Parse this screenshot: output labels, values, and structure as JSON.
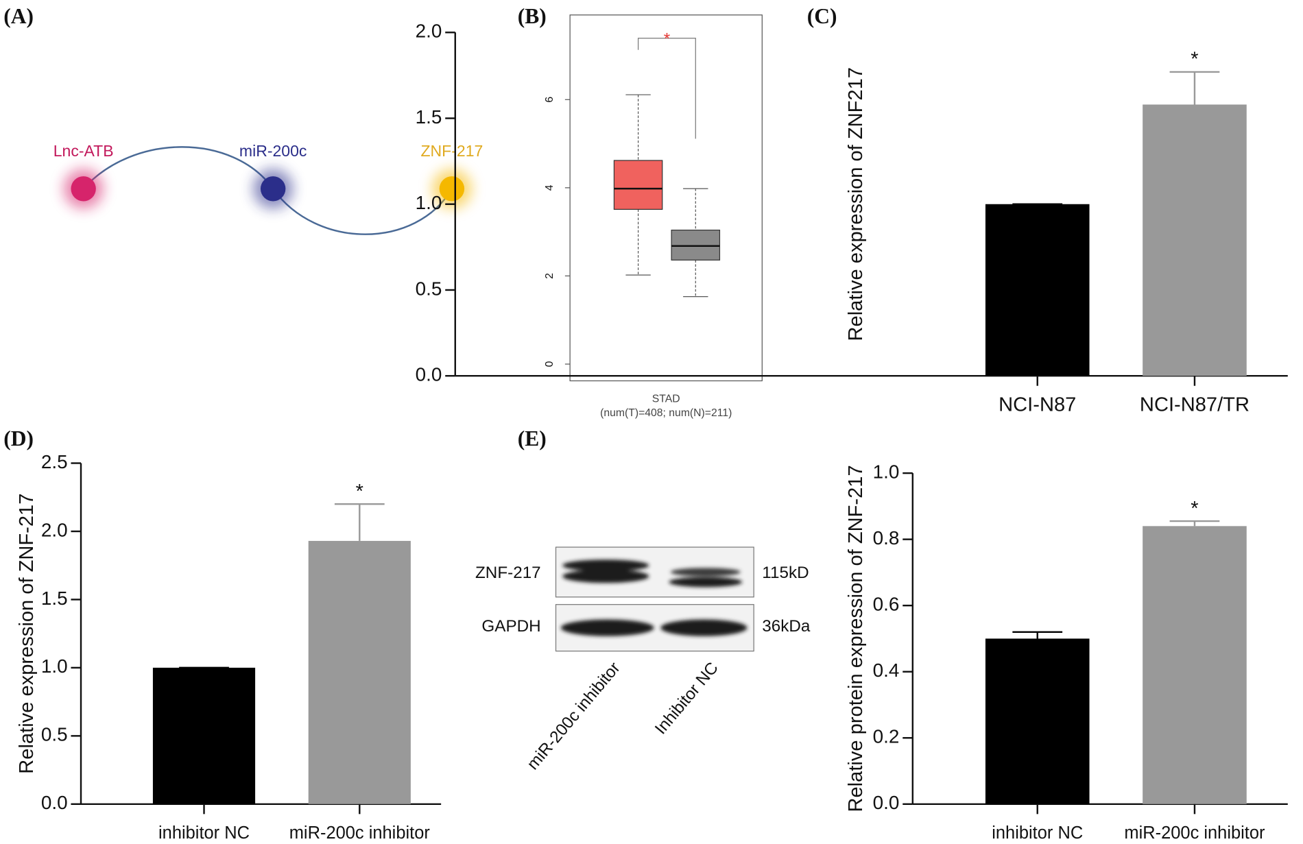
{
  "panel_labels": [
    "(A)",
    "(B)",
    "(C)",
    "(D)",
    "(E)"
  ],
  "diagram": {
    "nodes": [
      {
        "label": "Lnc-ATB",
        "color": "#d6246b",
        "label_color": "#c2185b"
      },
      {
        "label": "miR-200c",
        "color": "#2b2e8a",
        "label_color": "#2b2e8a"
      },
      {
        "label": "ZNF-217",
        "color": "#f5b800",
        "label_color": "#e0aa20"
      }
    ]
  },
  "blot": {
    "rows": [
      "ZNF-217",
      "GAPDH"
    ],
    "sizes": [
      "115kD",
      "36kDa"
    ],
    "lanes": [
      "miR-200c inhibitor",
      "Inhibitor NC"
    ]
  },
  "chart_data": [
    {
      "type": "box",
      "xlabel": [
        "STAD",
        "(num(T)=408; num(N)=211)"
      ],
      "annotation": "*",
      "annotation_color": "#e53935",
      "ylim": [
        -0.38,
        7.92
      ],
      "yticks": [
        0,
        2,
        4,
        6
      ],
      "stats": [
        {
          "color": "#f0625e",
          "low": 2.02,
          "q1": 3.51,
          "median": 3.98,
          "q3": 4.62,
          "high": 6.11
        },
        {
          "color": "#8a8a8a",
          "low": 1.53,
          "q1": 2.36,
          "median": 2.68,
          "q3": 3.04,
          "high": 3.98
        }
      ]
    },
    {
      "type": "bar",
      "ylabel": "Relative expression of ZNF217",
      "categories": [
        "NCI-N87",
        "NCI-N87/TR"
      ],
      "values": [
        1.0,
        1.58
      ],
      "errors": [
        0,
        0.19
      ],
      "colors": [
        "#000000",
        "#999999"
      ],
      "annotation": "*",
      "ylim": [
        0,
        2.0
      ],
      "yticks": [
        {
          "value": 0,
          "label": "0.0"
        },
        {
          "value": 0.5,
          "label": "0.5"
        },
        {
          "value": 1,
          "label": "1.0"
        },
        {
          "value": 1.5,
          "label": "1.5"
        },
        {
          "value": 2,
          "label": "2.0"
        }
      ]
    },
    {
      "type": "bar",
      "ylabel": "Relative expression of ZNF-217",
      "categories": [
        "inhibitor NC",
        "miR-200c inhibitor"
      ],
      "values": [
        1.0,
        1.93
      ],
      "errors": [
        0,
        0.27
      ],
      "colors": [
        "#000000",
        "#999999"
      ],
      "annotation": "*",
      "ylim": [
        0,
        2.5
      ],
      "yticks": [
        {
          "value": 0,
          "label": "0.0"
        },
        {
          "value": 0.5,
          "label": "0.5"
        },
        {
          "value": 1,
          "label": "1.0"
        },
        {
          "value": 1.5,
          "label": "1.5"
        },
        {
          "value": 2,
          "label": "2.0"
        },
        {
          "value": 2.5,
          "label": "2.5"
        }
      ]
    },
    {
      "type": "bar",
      "ylabel": "Relative protein expression of ZNF-217",
      "categories": [
        "inhibitor NC",
        "miR-200c inhibitor"
      ],
      "values": [
        0.5,
        0.84
      ],
      "errors": [
        0.02,
        0.015
      ],
      "colors": [
        "#000000",
        "#999999"
      ],
      "annotation": "*",
      "ylim": [
        0,
        1.0
      ],
      "yticks": [
        {
          "value": 0,
          "label": "0.0"
        },
        {
          "value": 0.2,
          "label": "0.2"
        },
        {
          "value": 0.4,
          "label": "0.4"
        },
        {
          "value": 0.6,
          "label": "0.6"
        },
        {
          "value": 0.8,
          "label": "0.8"
        },
        {
          "value": 1,
          "label": "1.0"
        }
      ]
    }
  ]
}
